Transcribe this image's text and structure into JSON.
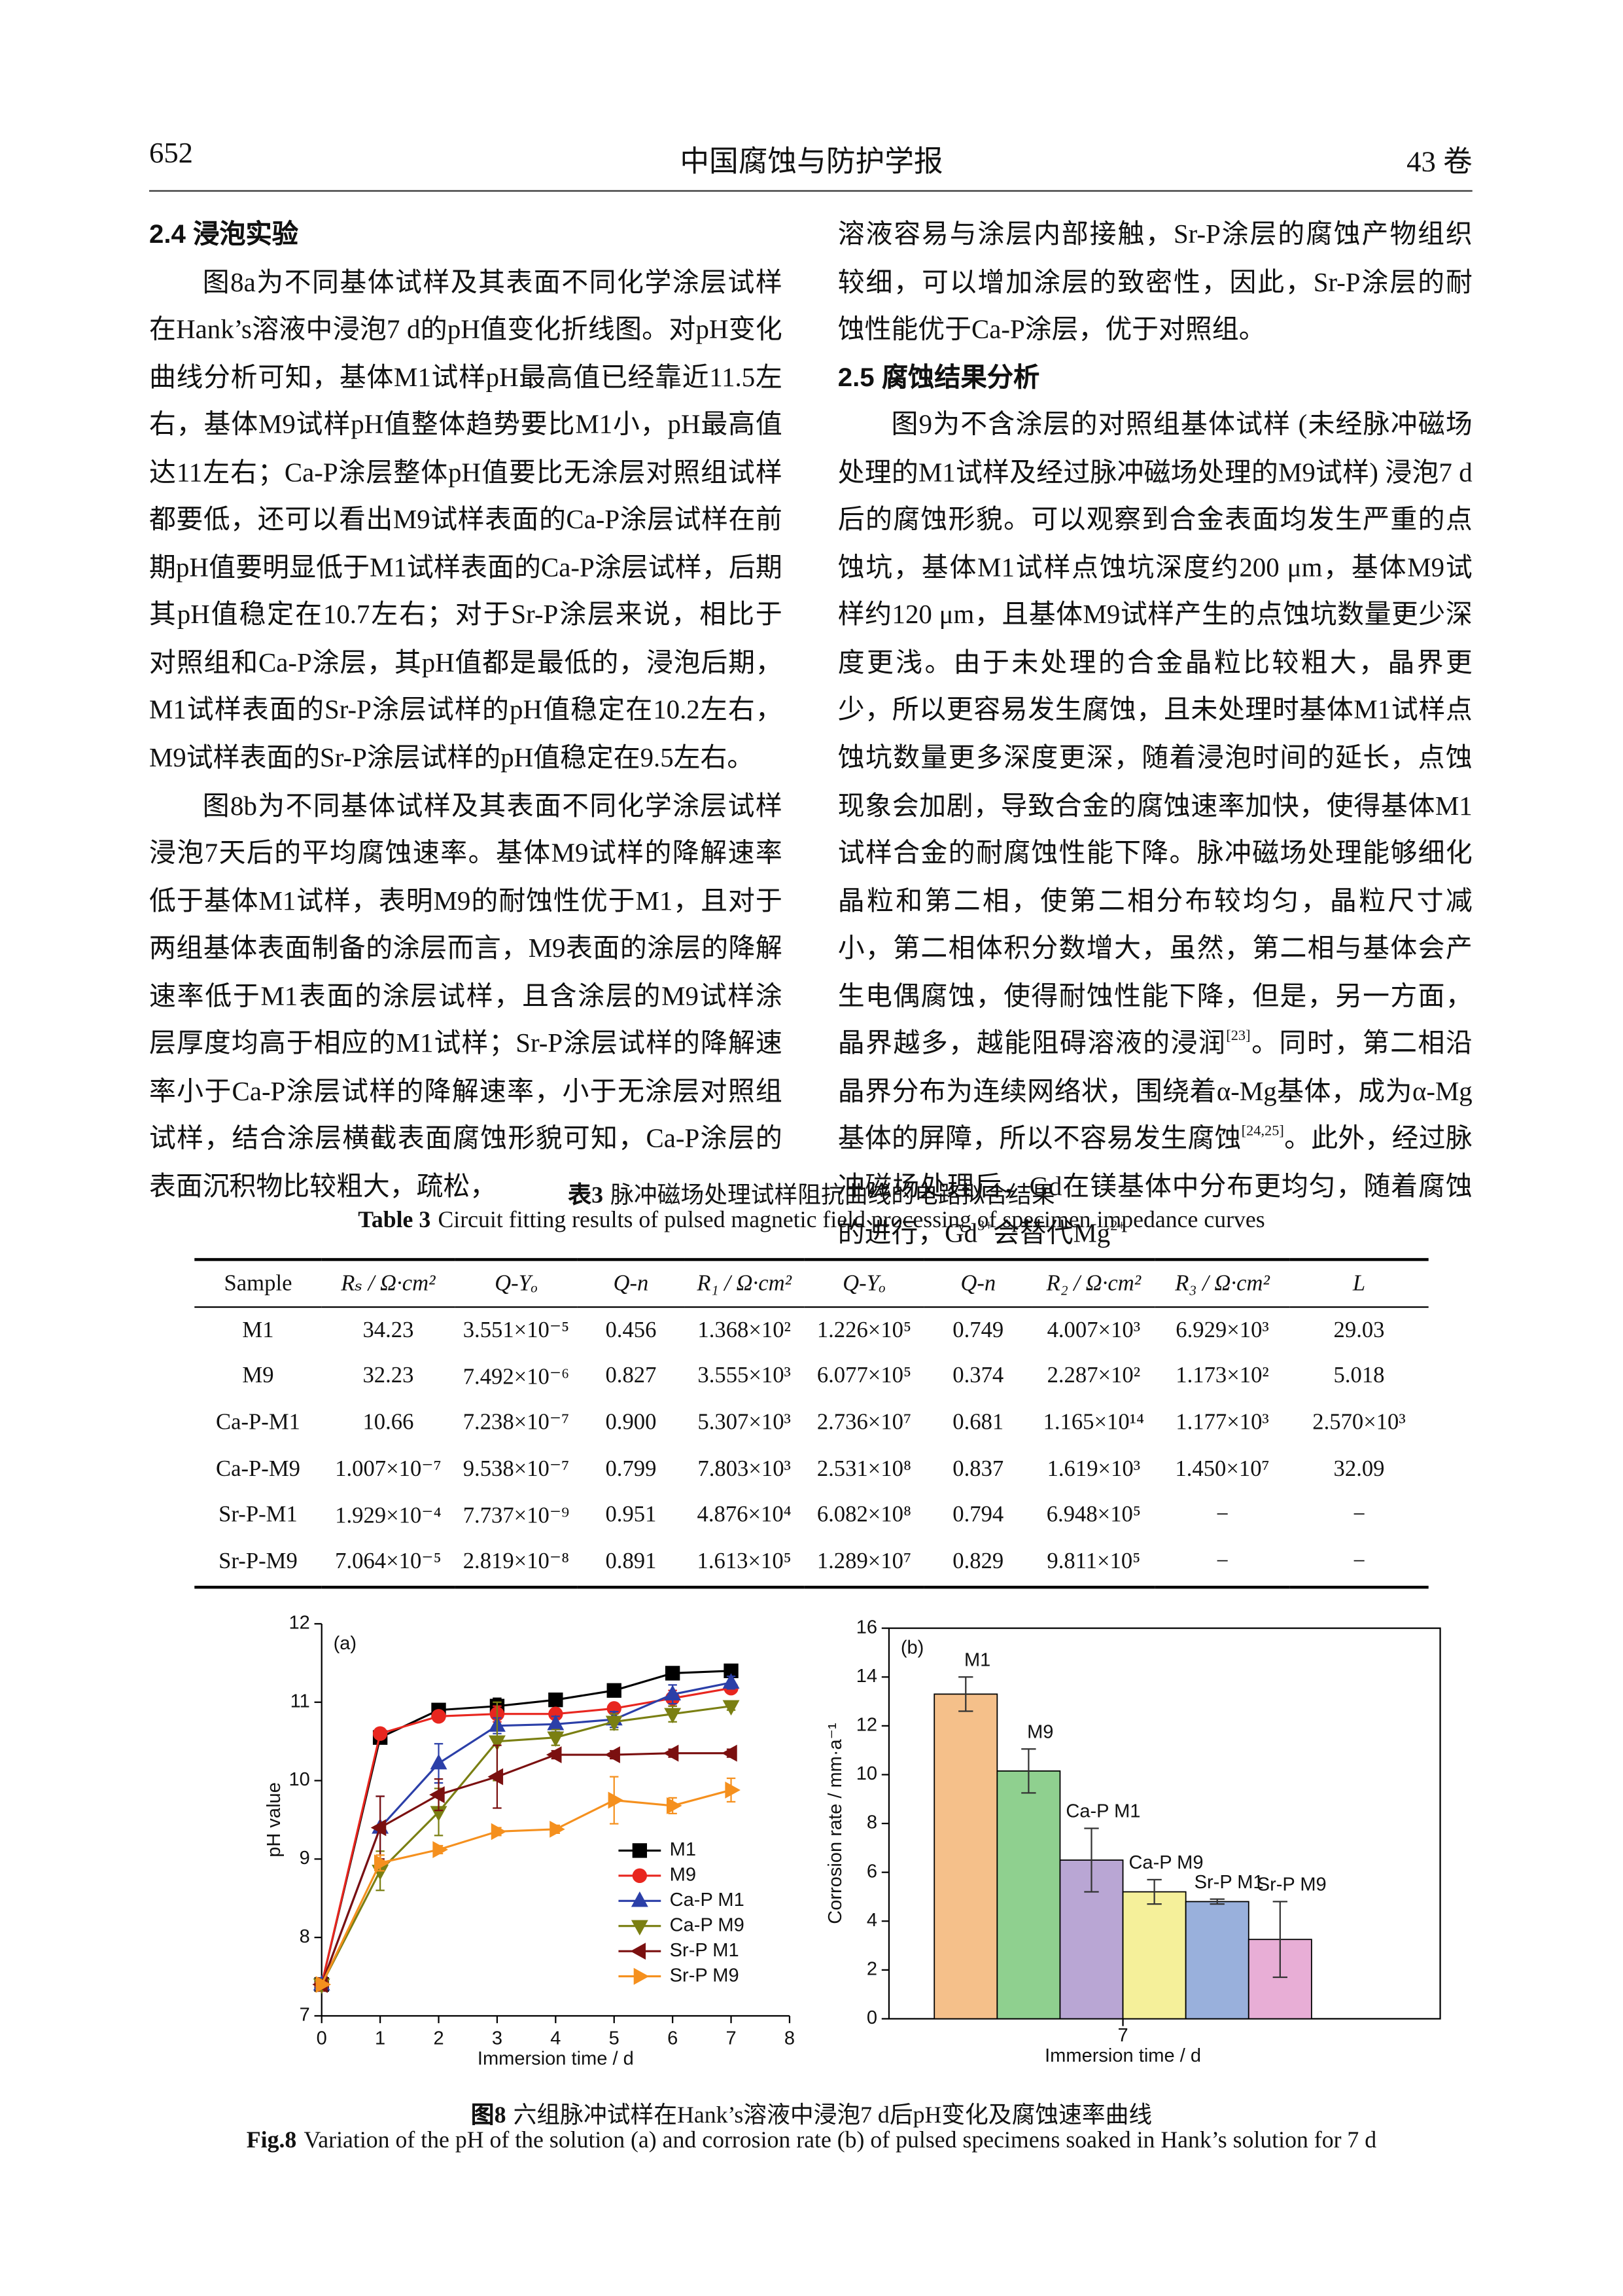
{
  "header": {
    "page": "652",
    "journal": "中国腐蚀与防护学报",
    "volume": "43 卷"
  },
  "left_column": [
    {
      "heading": "2.4  浸泡实验"
    },
    {
      "segments": [
        {
          "text": "图8a为不同基体试样及其表面不同化学涂层试样在Hank’s溶液中浸泡7 d的pH值变化折线图。对pH变化曲线分析可知，基体M1试样pH最高值已经靠近11.5左右，基体M9试样pH值整体趋势要比M1小，pH最高值达11左右；Ca-P涂层整体pH值要比无涂层对照组试样都要低，还可以看出M9试样表面的Ca-P涂层试样在前期pH值要明显低于M1试样表面的Ca-P涂层试样，后期其pH值稳定在10.7左右；对于Sr-P涂层来说，相比于对照组和Ca-P涂层，其pH值都是最低的，浸泡后期，M1试样表面的Sr-P涂层试样的pH值稳定在10.2左右，M9试样表面的Sr-P涂层试样的pH值稳定在9.5左右。"
        }
      ]
    },
    {
      "segments": [
        {
          "text": "图8b为不同基体试样及其表面不同化学涂层试样浸泡7天后的平均腐蚀速率。基体M9试样的降解速率低于基体M1试样，表明M9的耐蚀性优于M1，且对于两组基体表面制备的涂层而言，M9表面的涂层的降解速率低于M1表面的涂层试样，且含涂层的M9试样涂层厚度均高于相应的M1试样；Sr-P涂层试样的降解速率小于Ca-P涂层试样的降解速率，小于无涂层对照组试样，结合涂层横截表面腐蚀形貌可知，Ca-P涂层的表面沉积物比较粗大，疏松，"
        }
      ]
    }
  ],
  "right_column": [
    {
      "segments": [
        {
          "text": "溶液容易与涂层内部接触，Sr-P涂层的腐蚀产物组织较细，可以增加涂层的致密性，因此，Sr-P涂层的耐蚀性能优于Ca-P涂层，优于对照组。"
        }
      ]
    },
    {
      "heading": "2.5  腐蚀结果分析"
    },
    {
      "segments": [
        {
          "text": "图9为不含涂层的对照组基体试样 (未经脉冲磁场处理的M1试样及经过脉冲磁场处理的M9试样) 浸泡7 d后的腐蚀形貌。可以观察到合金表面均发生严重的点蚀坑，基体M1试样点蚀坑深度约200 μm，基体M9试样约120 μm，且基体M9试样产生的点蚀坑数量更少深度更浅。由于未处理的合金晶粒比较粗大，晶界更少，所以更容易发生腐蚀，且未处理时基体M1试样点蚀坑数量更多深度更深，随着浸泡时间的延长，点蚀现象会加剧，导致合金的腐蚀速率加快，使得基体M1试样合金的耐腐蚀性能下降。脉冲磁场处理能够细化晶粒和第二相，使第二相分布较均匀，晶粒尺寸减小，第二相体积分数增大，虽然，第二相与基体会产生电偶腐蚀，使得耐蚀性能下降，但是，另一方面，晶界越多，越能阻碍溶液的浸润"
        },
        {
          "sup": "[23]"
        },
        {
          "text": "。同时，第二相沿晶界分布为连续网络状，围绕着α-Mg基体，成为α-Mg基体的屏障，所以不容易发生腐蚀"
        },
        {
          "sup": "[24,25]"
        },
        {
          "text": "。此外，经过脉冲磁场处理后，Gd在镁基体中分布更均匀，随着腐蚀的进行，Gd"
        },
        {
          "sup": "3+"
        },
        {
          "text": "会替代Mg"
        },
        {
          "sup": "2+"
        }
      ]
    }
  ],
  "table": {
    "caption_cn": {
      "label": "表3",
      "text": "脉冲磁场处理试样阻抗曲线的电路拟合结果"
    },
    "caption_en": {
      "label": "Table 3",
      "text": "Circuit fitting results of pulsed magnetic field processing of specimen impedance curves"
    },
    "columns": [
      "Sample",
      "Rₛ / Ω·cm²",
      "Q-Yₒ",
      "Q-n",
      "R₁ / Ω·cm²",
      "Q-Yₒ",
      "Q-n",
      "R₂ / Ω·cm²",
      "R₃ / Ω·cm²",
      "L"
    ],
    "rows": [
      [
        "M1",
        "34.23",
        "3.551×10⁻⁵",
        "0.456",
        "1.368×10²",
        "1.226×10⁵",
        "0.749",
        "4.007×10³",
        "6.929×10³",
        "29.03"
      ],
      [
        "M9",
        "32.23",
        "7.492×10⁻⁶",
        "0.827",
        "3.555×10³",
        "6.077×10⁵",
        "0.374",
        "2.287×10²",
        "1.173×10²",
        "5.018"
      ],
      [
        "Ca-P-M1",
        "10.66",
        "7.238×10⁻⁷",
        "0.900",
        "5.307×10³",
        "2.736×10⁷",
        "0.681",
        "1.165×10¹⁴",
        "1.177×10³",
        "2.570×10³"
      ],
      [
        "Ca-P-M9",
        "1.007×10⁻⁷",
        "9.538×10⁻⁷",
        "0.799",
        "7.803×10³",
        "2.531×10⁸",
        "0.837",
        "1.619×10³",
        "1.450×10⁷",
        "32.09"
      ],
      [
        "Sr-P-M1",
        "1.929×10⁻⁴",
        "7.737×10⁻⁹",
        "0.951",
        "4.876×10⁴",
        "6.082×10⁸",
        "0.794",
        "6.948×10⁵",
        "−",
        "−"
      ],
      [
        "Sr-P-M9",
        "7.064×10⁻⁵",
        "2.819×10⁻⁸",
        "0.891",
        "1.613×10⁵",
        "1.289×10⁷",
        "0.829",
        "9.811×10⁵",
        "−",
        "−"
      ]
    ]
  },
  "figure": {
    "caption_cn": {
      "label": "图8",
      "text": "六组脉冲试样在Hank’s溶液中浸泡7 d后pH变化及腐蚀速率曲线"
    },
    "caption_en": {
      "label": "Fig.8",
      "text": "Variation of the pH of the solution (a) and corrosion rate (b) of pulsed specimens soaked in Hank’s solution for 7 d"
    }
  },
  "chart_data": [
    {
      "type": "line",
      "panel_label": "(a)",
      "xlabel": "Immersion time / d",
      "ylabel": "pH value",
      "x": [
        0,
        1,
        2,
        3,
        4,
        5,
        6,
        7
      ],
      "xlim": [
        0,
        8
      ],
      "xticks": [
        0,
        1,
        2,
        3,
        4,
        5,
        6,
        7,
        8
      ],
      "ylim": [
        7,
        12
      ],
      "yticks": [
        7,
        8,
        9,
        10,
        11,
        12
      ],
      "series": [
        {
          "name": "M1",
          "color": "#000000",
          "marker": "square",
          "values": [
            7.4,
            10.55,
            10.9,
            10.95,
            11.03,
            11.15,
            11.37,
            11.4
          ],
          "errors": [
            0,
            0.05,
            0.08,
            0.1,
            0.03,
            0.05,
            0.08,
            0.03
          ]
        },
        {
          "name": "M9",
          "color": "#e8261f",
          "marker": "circle",
          "values": [
            7.4,
            10.6,
            10.82,
            10.85,
            10.85,
            10.92,
            11.05,
            11.18
          ],
          "errors": [
            0,
            0.06,
            0.05,
            0.1,
            0.05,
            0.05,
            0.1,
            0.05
          ]
        },
        {
          "name": "Ca-P M1",
          "color": "#2b3fa8",
          "marker": "triangle-up",
          "values": [
            7.4,
            9.4,
            10.22,
            10.7,
            10.72,
            10.78,
            11.1,
            11.25
          ],
          "errors": [
            0,
            0.4,
            0.25,
            0.1,
            0.1,
            0.1,
            0.12,
            0.08
          ]
        },
        {
          "name": "Ca-P M9",
          "color": "#7a7f12",
          "marker": "triangle-down",
          "values": [
            7.4,
            8.85,
            9.6,
            10.5,
            10.55,
            10.75,
            10.85,
            10.95
          ],
          "errors": [
            0,
            0.25,
            0.3,
            0.5,
            0.1,
            0.1,
            0.1,
            0.05
          ]
        },
        {
          "name": "Sr-P  M1",
          "color": "#7b1010",
          "marker": "triangle-left",
          "values": [
            7.4,
            9.4,
            9.82,
            10.05,
            10.33,
            10.33,
            10.35,
            10.35
          ],
          "errors": [
            0,
            0.4,
            0.2,
            0.4,
            0.05,
            0.05,
            0.05,
            0.05
          ]
        },
        {
          "name": "Sr-P  M9",
          "color": "#f5901e",
          "marker": "triangle-right",
          "values": [
            7.4,
            8.95,
            9.12,
            9.35,
            9.38,
            9.75,
            9.68,
            9.88
          ],
          "errors": [
            0,
            0.1,
            0.05,
            0.05,
            0.05,
            0.3,
            0.1,
            0.15
          ]
        }
      ]
    },
    {
      "type": "bar",
      "panel_label": "(b)",
      "xlabel": "Immersion time / d",
      "ylabel": "Corrosion rate / mm·a⁻¹",
      "categories": [
        "7"
      ],
      "ylim": [
        0,
        16
      ],
      "yticks": [
        0,
        2,
        4,
        6,
        8,
        10,
        12,
        14,
        16
      ],
      "series": [
        {
          "name": "M1",
          "color": "#f5c08a",
          "values": [
            13.3
          ],
          "errors": [
            0.7
          ]
        },
        {
          "name": "M9",
          "color": "#8fd08f",
          "values": [
            10.15
          ],
          "errors": [
            0.9
          ]
        },
        {
          "name": "Ca-P M1",
          "color": "#b9a6d4",
          "values": [
            6.5
          ],
          "errors": [
            1.3
          ]
        },
        {
          "name": "Ca-P M9",
          "color": "#f5f09a",
          "values": [
            5.2
          ],
          "errors": [
            0.5
          ]
        },
        {
          "name": "Sr-P M1",
          "color": "#99b0dc",
          "values": [
            4.8
          ],
          "errors": [
            0.1
          ]
        },
        {
          "name": "Sr-P M9",
          "color": "#e8aed6",
          "values": [
            3.25
          ],
          "errors": [
            1.55
          ]
        }
      ]
    }
  ]
}
